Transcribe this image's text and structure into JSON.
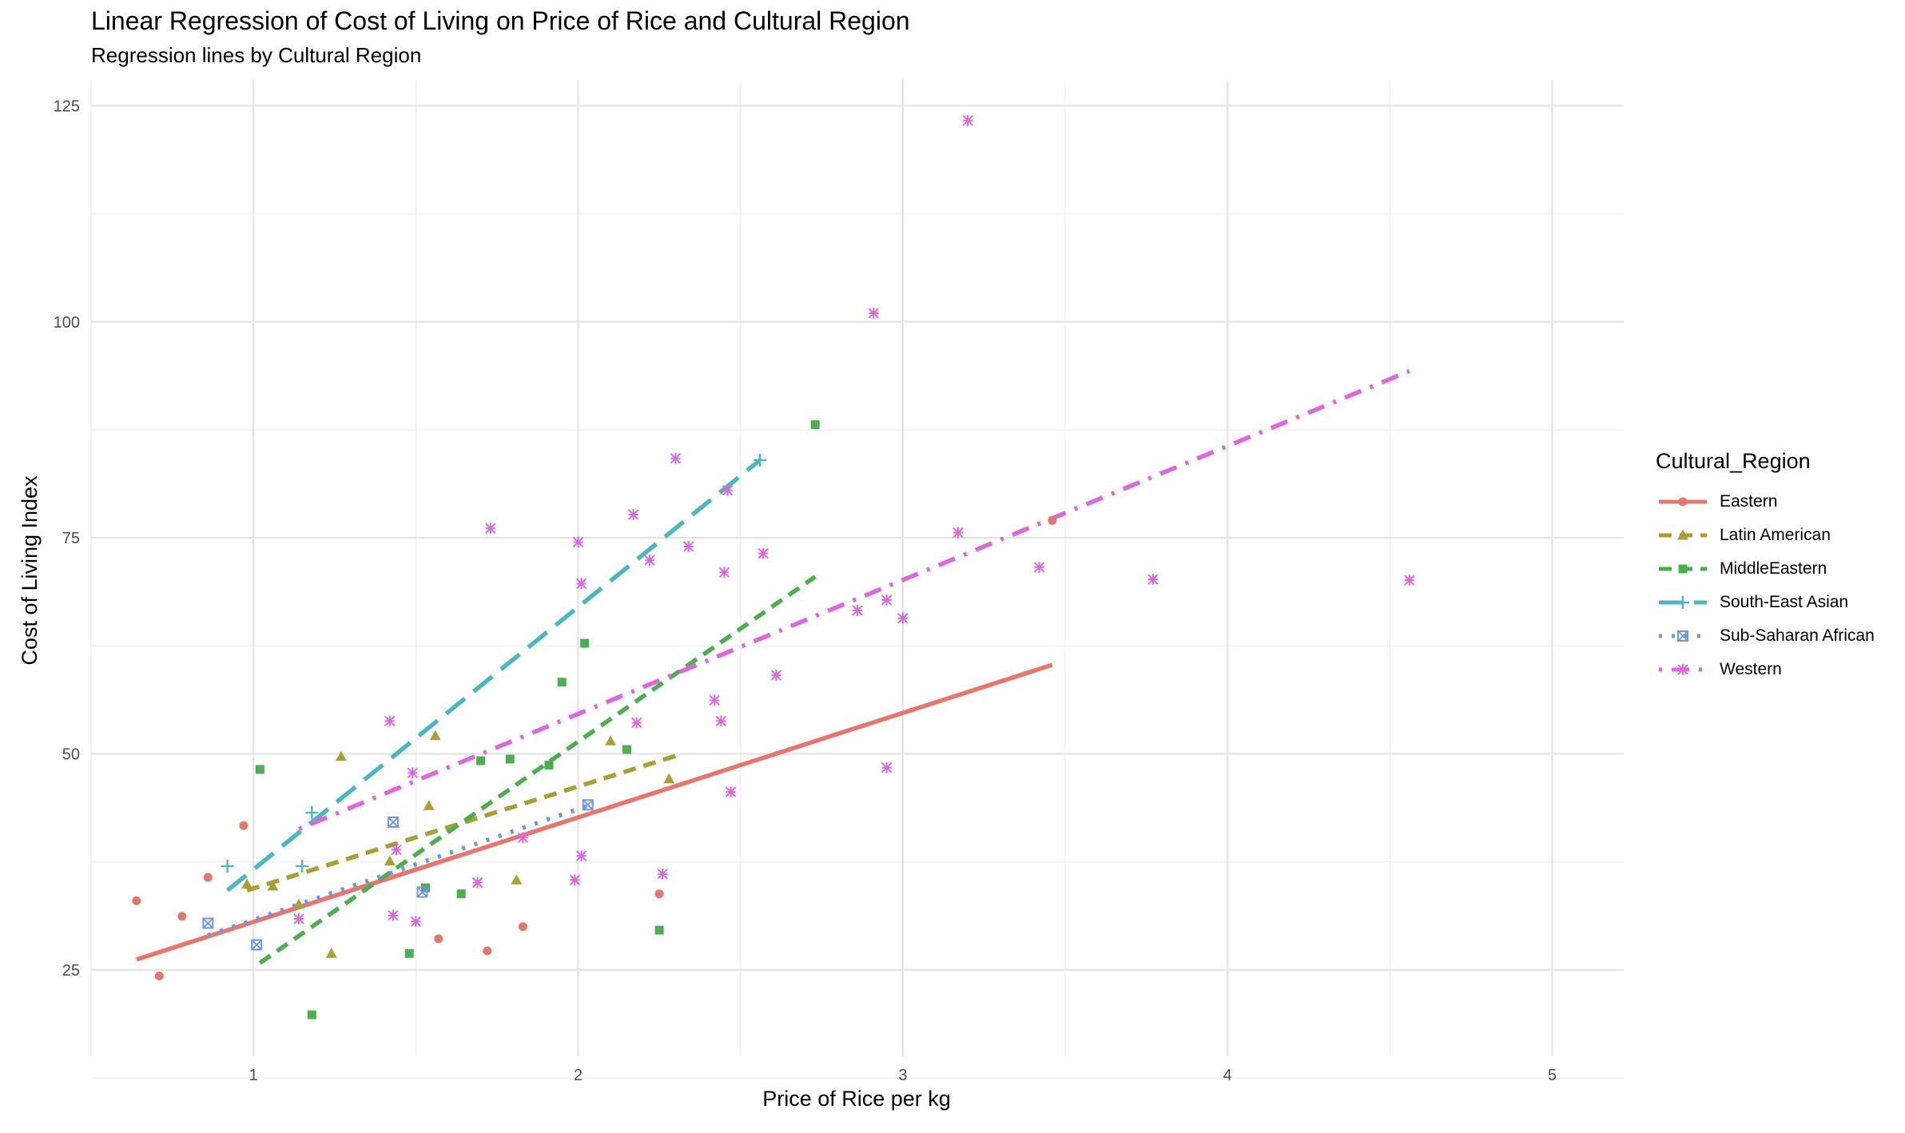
{
  "chart_data": {
    "type": "scatter",
    "title": "Linear Regression of Cost of Living on Price of Rice and Cultural Region",
    "subtitle": "Regression lines by Cultural Region",
    "xlabel": "Price of Rice per kg",
    "ylabel": "Cost of Living Index",
    "xlim": [
      0.5,
      5.22
    ],
    "ylim": [
      15,
      128
    ],
    "x_ticks": [
      1,
      2,
      3,
      4,
      5
    ],
    "y_ticks": [
      25,
      50,
      75,
      100,
      125
    ],
    "grid": true,
    "legend_title": "Cultural_Region",
    "legend_position": "right",
    "series": [
      {
        "name": "Eastern",
        "color": "#e6776e",
        "marker": "circle",
        "line_style": "solid",
        "points": [
          [
            0.64,
            33.0
          ],
          [
            0.71,
            24.3
          ],
          [
            0.78,
            31.2
          ],
          [
            0.86,
            35.7
          ],
          [
            0.97,
            41.7
          ],
          [
            1.57,
            28.6
          ],
          [
            1.72,
            27.2
          ],
          [
            1.83,
            30.0
          ],
          [
            2.25,
            33.8
          ],
          [
            3.46,
            77.0
          ]
        ],
        "fit": [
          [
            0.64,
            26.2
          ],
          [
            3.46,
            60.3
          ]
        ]
      },
      {
        "name": "Latin American",
        "color": "#a8a032",
        "marker": "triangle",
        "line_style": "dashed",
        "points": [
          [
            0.98,
            34.9
          ],
          [
            1.06,
            34.7
          ],
          [
            1.14,
            32.6
          ],
          [
            1.24,
            26.9
          ],
          [
            1.27,
            49.7
          ],
          [
            1.42,
            37.6
          ],
          [
            1.54,
            44.0
          ],
          [
            1.56,
            52.1
          ],
          [
            1.81,
            35.4
          ],
          [
            2.1,
            51.5
          ],
          [
            2.28,
            47.1
          ]
        ],
        "fit": [
          [
            0.98,
            34.2
          ],
          [
            2.32,
            50.0
          ]
        ]
      },
      {
        "name": "MiddleEastern",
        "color": "#4caf4f",
        "marker": "square",
        "line_style": "dashed",
        "points": [
          [
            1.02,
            48.2
          ],
          [
            1.18,
            19.8
          ],
          [
            1.48,
            26.9
          ],
          [
            1.53,
            34.5
          ],
          [
            1.64,
            33.8
          ],
          [
            1.7,
            49.2
          ],
          [
            1.79,
            49.4
          ],
          [
            1.91,
            48.7
          ],
          [
            1.95,
            58.3
          ],
          [
            2.02,
            62.8
          ],
          [
            2.15,
            50.5
          ],
          [
            2.25,
            29.6
          ],
          [
            2.73,
            88.1
          ]
        ],
        "fit": [
          [
            1.02,
            25.8
          ],
          [
            2.73,
            70.5
          ]
        ]
      },
      {
        "name": "South-East Asian",
        "color": "#4bb8c1",
        "marker": "plus",
        "line_style": "longdash",
        "points": [
          [
            0.92,
            37.0
          ],
          [
            1.15,
            37.0
          ],
          [
            1.18,
            43.2
          ],
          [
            2.56,
            84.0
          ]
        ],
        "fit": [
          [
            0.92,
            34.2
          ],
          [
            2.56,
            84.0
          ]
        ]
      },
      {
        "name": "Sub-Saharan African",
        "color": "#6f94ee",
        "marker": "square-x",
        "line_style": "dotted",
        "points": [
          [
            0.86,
            30.4
          ],
          [
            1.01,
            27.9
          ],
          [
            1.43,
            42.1
          ],
          [
            1.52,
            34.0
          ],
          [
            2.03,
            44.1
          ]
        ],
        "fit": [
          [
            0.86,
            29.0
          ],
          [
            2.03,
            44.0
          ]
        ]
      },
      {
        "name": "Western",
        "color": "#dd67dd",
        "marker": "asterisk",
        "line_style": "dotdash",
        "points": [
          [
            1.14,
            30.9
          ],
          [
            1.42,
            53.8
          ],
          [
            1.43,
            31.3
          ],
          [
            1.44,
            38.9
          ],
          [
            1.49,
            47.8
          ],
          [
            1.5,
            30.6
          ],
          [
            1.69,
            35.1
          ],
          [
            1.73,
            76.1
          ],
          [
            1.83,
            40.3
          ],
          [
            1.99,
            35.4
          ],
          [
            2.0,
            74.5
          ],
          [
            2.01,
            38.2
          ],
          [
            2.01,
            69.7
          ],
          [
            2.17,
            77.7
          ],
          [
            2.18,
            53.6
          ],
          [
            2.22,
            72.4
          ],
          [
            2.26,
            36.1
          ],
          [
            2.3,
            84.2
          ],
          [
            2.34,
            74.0
          ],
          [
            2.42,
            56.2
          ],
          [
            2.44,
            53.8
          ],
          [
            2.45,
            71.0
          ],
          [
            2.46,
            80.5
          ],
          [
            2.47,
            45.6
          ],
          [
            2.57,
            73.2
          ],
          [
            2.61,
            59.1
          ],
          [
            2.86,
            66.6
          ],
          [
            2.91,
            101.0
          ],
          [
            2.95,
            67.8
          ],
          [
            2.95,
            48.4
          ],
          [
            3.0,
            65.7
          ],
          [
            3.17,
            75.6
          ],
          [
            3.2,
            123.3
          ],
          [
            3.42,
            71.6
          ],
          [
            3.77,
            70.2
          ],
          [
            4.56,
            70.1
          ]
        ],
        "fit": [
          [
            1.14,
            41.3
          ],
          [
            4.56,
            94.3
          ]
        ]
      }
    ]
  }
}
